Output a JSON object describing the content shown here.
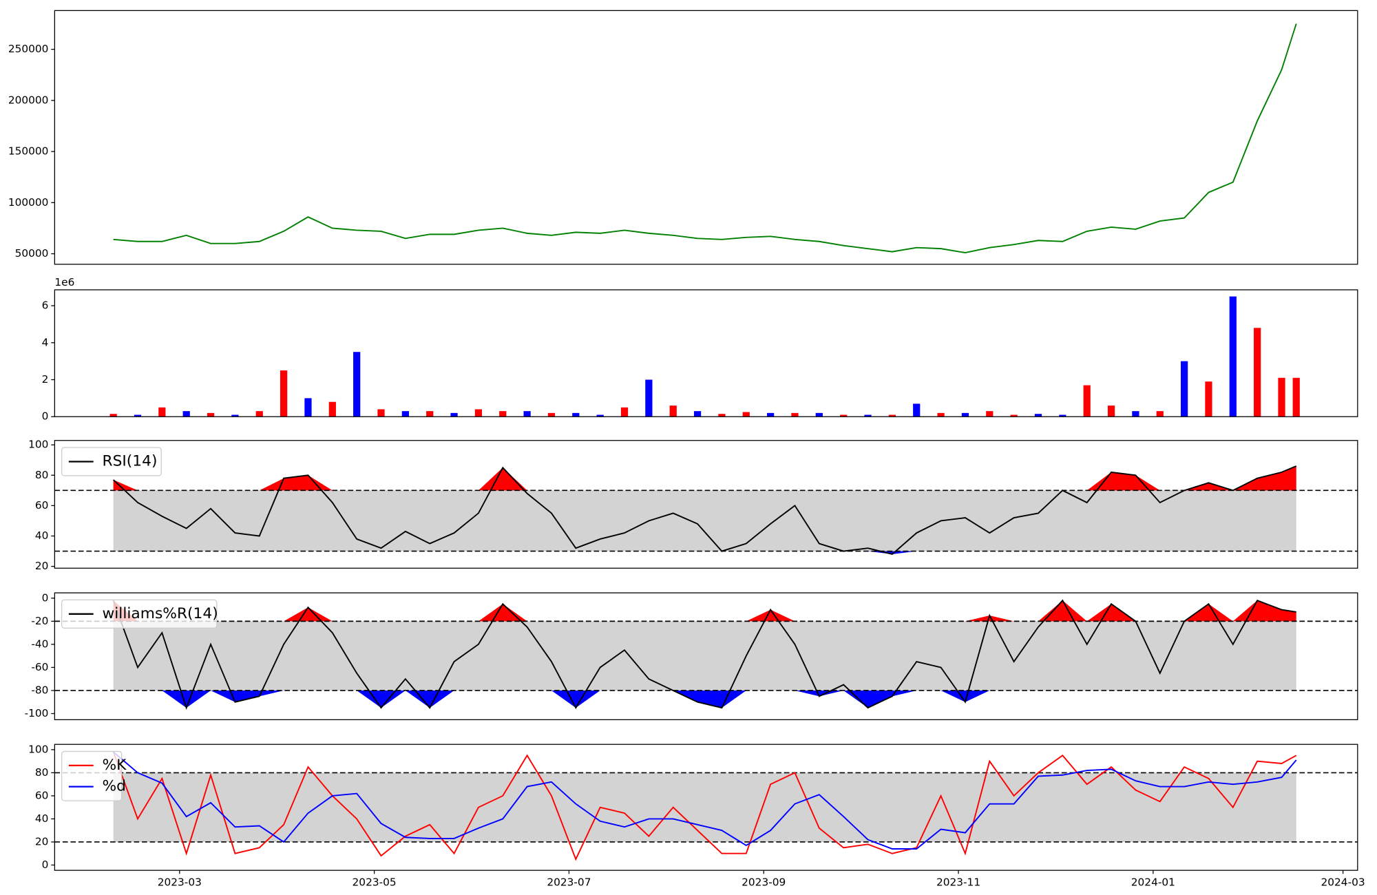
{
  "chart_data": [
    {
      "type": "line",
      "series": [
        {
          "color": "green",
          "values": [
            64000,
            62000,
            62000,
            68000,
            60000,
            60000,
            62000,
            72000,
            86000,
            75000,
            73000,
            72000,
            65000,
            69000,
            69000,
            73000,
            75000,
            70000,
            68000,
            71000,
            70000,
            73000,
            70000,
            68000,
            65000,
            64000,
            66000,
            67000,
            64000,
            62000,
            58000,
            55000,
            52000,
            56000,
            55000,
            51000,
            56000,
            59000,
            63000,
            62000,
            72000,
            76000,
            74000,
            82000,
            85000,
            110000,
            120000,
            180000,
            230000,
            275000
          ]
        }
      ],
      "ylim": [
        39700,
        287900
      ],
      "yticks": [
        50000,
        100000,
        150000,
        200000,
        250000
      ]
    },
    {
      "type": "bar",
      "offset_label": "1e6",
      "values": [
        0.15,
        0.1,
        0.5,
        0.3,
        0.2,
        0.1,
        0.3,
        2.5,
        1.0,
        0.8,
        3.5,
        0.4,
        0.3,
        0.3,
        0.2,
        0.4,
        0.3,
        0.3,
        0.2,
        0.2,
        0.1,
        0.5,
        2.0,
        0.6,
        0.3,
        0.15,
        0.25,
        0.2,
        0.2,
        0.2,
        0.1,
        0.1,
        0.1,
        0.7,
        0.2,
        0.2,
        0.3,
        0.1,
        0.15,
        0.1,
        1.7,
        0.6,
        0.3,
        0.3,
        3.0,
        1.9,
        6.5,
        4.8,
        2.1,
        2.1
      ],
      "colors": [
        "red",
        "blue",
        "red",
        "blue",
        "red",
        "blue",
        "red",
        "red",
        "blue",
        "red",
        "blue",
        "red",
        "blue",
        "red",
        "blue",
        "red",
        "red",
        "blue",
        "red",
        "blue",
        "blue",
        "red",
        "blue",
        "red",
        "blue",
        "red",
        "red",
        "blue",
        "red",
        "blue",
        "red",
        "blue",
        "red",
        "blue",
        "red",
        "blue",
        "red",
        "red",
        "blue",
        "blue",
        "red",
        "red",
        "blue",
        "red",
        "blue",
        "red",
        "blue",
        "red",
        "red",
        "red"
      ],
      "ylim": [
        0,
        6.86
      ],
      "yticks": [
        0,
        2,
        4,
        6
      ]
    },
    {
      "type": "line",
      "series": [
        {
          "name": "RSI(14)",
          "color": "black",
          "values": [
            77,
            62,
            53,
            45,
            58,
            42,
            40,
            78,
            80,
            62,
            38,
            32,
            43,
            35,
            42,
            55,
            85,
            68,
            55,
            32,
            38,
            42,
            50,
            55,
            48,
            30,
            35,
            48,
            60,
            35,
            30,
            32,
            28,
            42,
            50,
            52,
            42,
            52,
            55,
            70,
            62,
            82,
            80,
            62,
            70,
            75,
            70,
            78,
            82,
            86
          ]
        }
      ],
      "upper": 70,
      "lower": 30,
      "band_color": "lightgray",
      "upper_fill": "red",
      "lower_fill": "blue",
      "legend": "upper left",
      "ylim": [
        18.8,
        102.9
      ],
      "yticks": [
        20,
        40,
        60,
        80,
        100
      ]
    },
    {
      "type": "line",
      "series": [
        {
          "name": "williams%R(14)",
          "color": "black",
          "values": [
            -2,
            -60,
            -30,
            -95,
            -40,
            -90,
            -85,
            -40,
            -8,
            -30,
            -65,
            -95,
            -70,
            -95,
            -55,
            -40,
            -5,
            -25,
            -55,
            -95,
            -60,
            -45,
            -70,
            -80,
            -90,
            -95,
            -50,
            -10,
            -40,
            -85,
            -75,
            -95,
            -85,
            -55,
            -60,
            -90,
            -15,
            -55,
            -25,
            -2,
            -40,
            -5,
            -20,
            -65,
            -20,
            -5,
            -40,
            -2,
            -10,
            -12
          ]
        }
      ],
      "upper": -20,
      "lower": -80,
      "band_color": "lightgray",
      "upper_fill": "red",
      "lower_fill": "blue",
      "legend": "upper left",
      "ylim": [
        -105.3,
        4.6
      ],
      "yticks": [
        -100,
        -80,
        -60,
        -40,
        -20,
        0
      ]
    },
    {
      "type": "line",
      "x": [
        1.32,
        1.57,
        1.82,
        2.07,
        2.32,
        2.57,
        2.82,
        3.07,
        3.32,
        3.57,
        3.82,
        4.07,
        4.32,
        4.57,
        4.82,
        5.07,
        5.32,
        5.57,
        5.82,
        6.07,
        6.32,
        6.57,
        6.82,
        7.07,
        7.32,
        7.57,
        7.82,
        8.07,
        8.32,
        8.57,
        8.82,
        9.07,
        9.32,
        9.57,
        9.82,
        10.07,
        10.32,
        10.57,
        10.82,
        11.07,
        11.32,
        11.57,
        11.82,
        12.07,
        12.32,
        12.57,
        12.82,
        13.07,
        13.32,
        13.47
      ],
      "xlim": [
        0.717,
        14.1
      ],
      "xticks": [
        {
          "value": 2,
          "label": "2023-03"
        },
        {
          "value": 4,
          "label": "2023-05"
        },
        {
          "value": 6,
          "label": "2023-07"
        },
        {
          "value": 8,
          "label": "2023-09"
        },
        {
          "value": 10,
          "label": "2023-11"
        },
        {
          "value": 12,
          "label": "2024-01"
        },
        {
          "value": 13.95,
          "label": "2024-03"
        }
      ],
      "series": [
        {
          "name": "%K",
          "color": "red",
          "values": [
            98,
            40,
            75,
            10,
            78,
            10,
            15,
            35,
            85,
            60,
            40,
            8,
            25,
            35,
            10,
            50,
            60,
            95,
            60,
            5,
            50,
            45,
            25,
            50,
            30,
            10,
            10,
            70,
            80,
            32,
            15,
            18,
            10,
            15,
            60,
            10,
            90,
            60,
            80,
            95,
            70,
            85,
            65,
            55,
            85,
            75,
            50,
            90,
            88,
            95
          ]
        },
        {
          "name": "%d",
          "color": "blue",
          "values": [
            98,
            80,
            71,
            42,
            54,
            33,
            34,
            20,
            45,
            60,
            62,
            36,
            24,
            23,
            23,
            32,
            40,
            68,
            72,
            53,
            38,
            33,
            40,
            40,
            35,
            30,
            17,
            30,
            53,
            61,
            42,
            22,
            14,
            14,
            31,
            28,
            53,
            53,
            77,
            78,
            82,
            83,
            73,
            68,
            68,
            72,
            70,
            72,
            76,
            91
          ]
        }
      ],
      "upper": 80,
      "lower": 20,
      "band_color": "lightgray",
      "legend": "upper left",
      "ylim": [
        -4.6,
        104.6
      ],
      "yticks": [
        0,
        20,
        40,
        60,
        80,
        100
      ]
    }
  ]
}
